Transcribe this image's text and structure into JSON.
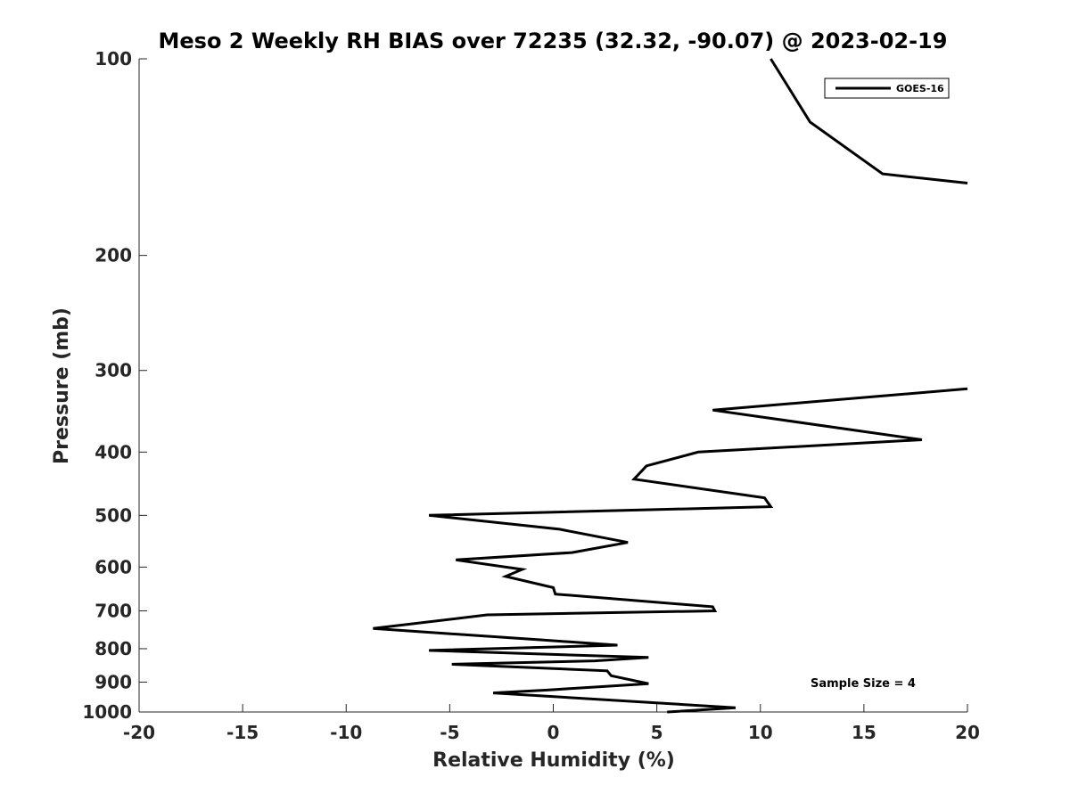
{
  "chart_data": {
    "type": "line",
    "title": "Meso 2 Weekly RH BIAS over 72235 (32.32, -90.07) @ 2023-02-19",
    "xlabel": "Relative Humidity (%)",
    "ylabel": "Pressure (mb)",
    "xlim": [
      -20,
      20
    ],
    "ylim": [
      100,
      1000
    ],
    "y_scale": "log",
    "y_inverted": true,
    "x_ticks": [
      "-20",
      "-15",
      "-10",
      "-5",
      "0",
      "5",
      "10",
      "15",
      "20"
    ],
    "y_ticks": [
      "100",
      "200",
      "300",
      "400",
      "500",
      "600",
      "700",
      "800",
      "900",
      "1000"
    ],
    "grid": false,
    "legend_position": "top-right",
    "annotation": "Sample Size = 4",
    "series": [
      {
        "name": "GOES-16",
        "color": "#000000",
        "segments": [
          [
            {
              "x": 10.5,
              "p": 100
            },
            {
              "x": 12.4,
              "p": 125
            },
            {
              "x": 15.9,
              "p": 150
            },
            {
              "x": 20.0,
              "p": 155
            }
          ],
          [
            {
              "x": 20.0,
              "p": 320
            },
            {
              "x": 7.7,
              "p": 345
            },
            {
              "x": 17.8,
              "p": 383
            },
            {
              "x": 7.0,
              "p": 400
            },
            {
              "x": 4.5,
              "p": 420
            },
            {
              "x": 3.9,
              "p": 440
            },
            {
              "x": 10.2,
              "p": 470
            },
            {
              "x": 10.5,
              "p": 485
            },
            {
              "x": -6.0,
              "p": 500
            },
            {
              "x": 0.3,
              "p": 525
            },
            {
              "x": 3.6,
              "p": 550
            },
            {
              "x": 0.9,
              "p": 570
            },
            {
              "x": -4.7,
              "p": 585
            },
            {
              "x": -1.5,
              "p": 605
            },
            {
              "x": -2.3,
              "p": 620
            },
            {
              "x": 0.0,
              "p": 645
            },
            {
              "x": 0.1,
              "p": 660
            },
            {
              "x": 7.7,
              "p": 690
            },
            {
              "x": 7.8,
              "p": 700
            },
            {
              "x": -3.2,
              "p": 710
            },
            {
              "x": -8.7,
              "p": 745
            },
            {
              "x": -0.7,
              "p": 775
            },
            {
              "x": 3.1,
              "p": 790
            },
            {
              "x": -6.0,
              "p": 805
            },
            {
              "x": 4.6,
              "p": 825
            },
            {
              "x": 2.0,
              "p": 835
            },
            {
              "x": -4.9,
              "p": 845
            },
            {
              "x": 2.6,
              "p": 865
            },
            {
              "x": 2.8,
              "p": 880
            },
            {
              "x": 4.6,
              "p": 905
            },
            {
              "x": -0.2,
              "p": 925
            },
            {
              "x": -2.9,
              "p": 935
            },
            {
              "x": 8.8,
              "p": 985
            },
            {
              "x": 5.5,
              "p": 1000
            }
          ]
        ]
      }
    ]
  }
}
